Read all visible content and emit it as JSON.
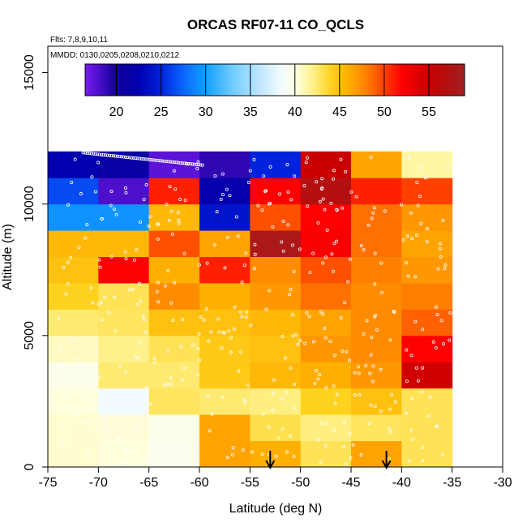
{
  "chart_data": {
    "type": "heatmap",
    "title": "ORCAS RF07-11 CO_QCLS",
    "note_flights": "Flts: 7,8,9,10,11",
    "note_dates": "MMDD: 0130,0205,0208,0210,0212",
    "xlabel": "Latitude (deg N)",
    "ylabel": "Altitude (m)",
    "xlim": [
      -75,
      -30
    ],
    "ylim": [
      0,
      16000
    ],
    "xticks": [
      -75,
      -70,
      -65,
      -60,
      -55,
      -50,
      -45,
      -40,
      -35,
      -30
    ],
    "yticks": [
      0,
      5000,
      10000,
      15000
    ],
    "colorbar": {
      "range": [
        16.5,
        59
      ],
      "ticks": [
        20,
        25,
        30,
        35,
        40,
        45,
        50,
        55
      ],
      "stops": [
        {
          "v": 16.5,
          "c": "#7a1af0"
        },
        {
          "v": 20,
          "c": "#10009a"
        },
        {
          "v": 22.5,
          "c": "#0000b0"
        },
        {
          "v": 25,
          "c": "#0022dd"
        },
        {
          "v": 27.5,
          "c": "#0a66ff"
        },
        {
          "v": 30,
          "c": "#10a0ff"
        },
        {
          "v": 33,
          "c": "#70ccff"
        },
        {
          "v": 36,
          "c": "#c0e6ff"
        },
        {
          "v": 38.5,
          "c": "#f2fbff"
        },
        {
          "v": 40,
          "c": "#ffffe6"
        },
        {
          "v": 42,
          "c": "#fff28c"
        },
        {
          "v": 44,
          "c": "#ffd21f"
        },
        {
          "v": 46,
          "c": "#ffaf00"
        },
        {
          "v": 48,
          "c": "#ff8000"
        },
        {
          "v": 50,
          "c": "#ff4000"
        },
        {
          "v": 52,
          "c": "#ff0000"
        },
        {
          "v": 55,
          "c": "#c80000"
        },
        {
          "v": 59,
          "c": "#a02020"
        }
      ]
    },
    "x_bins": [
      -75,
      -70,
      -65,
      -60,
      -55,
      -50,
      -45,
      -40,
      -35
    ],
    "y_bins": [
      0,
      1000,
      2000,
      3000,
      4000,
      5000,
      6000,
      7000,
      8000,
      9000,
      10000,
      11000,
      12000
    ],
    "values": [
      [
        40.5,
        40.2,
        39.5,
        46.5,
        46.0,
        43.0,
        46.5,
        43.0
      ],
      [
        40.5,
        40.3,
        39.8,
        46.5,
        43.2,
        42.2,
        42.8,
        43.0
      ],
      [
        40.2,
        38.5,
        42.8,
        42.5,
        42.2,
        44.0,
        45.0,
        43.0
      ],
      [
        39.8,
        42.5,
        42.5,
        44.5,
        45.5,
        46.0,
        47.0,
        54.5
      ],
      [
        40.8,
        42.0,
        43.0,
        44.5,
        45.0,
        47.0,
        47.5,
        52.0
      ],
      [
        42.5,
        42.8,
        45.0,
        45.0,
        45.5,
        46.5,
        47.5,
        49.0
      ],
      [
        44.0,
        43.0,
        47.5,
        46.0,
        47.0,
        48.5,
        47.5,
        48.0
      ],
      [
        45.0,
        52.0,
        46.0,
        51.0,
        47.5,
        49.5,
        48.0,
        47.0
      ],
      [
        45.5,
        45.5,
        49.5,
        46.5,
        58.0,
        52.5,
        48.5,
        46.5
      ],
      [
        29.5,
        29.5,
        45.5,
        24.0,
        49.5,
        52.0,
        48.5,
        47.0
      ],
      [
        26.5,
        18.0,
        51.0,
        22.0,
        52.0,
        57.0,
        51.0,
        50.0
      ],
      [
        22.5,
        21.0,
        17.5,
        19.0,
        25.0,
        55.0,
        46.5,
        41.5
      ]
    ],
    "markers": [
      {
        "label": "arrow",
        "lat": -53.0
      },
      {
        "label": "arrow",
        "lat": -41.5
      }
    ]
  }
}
